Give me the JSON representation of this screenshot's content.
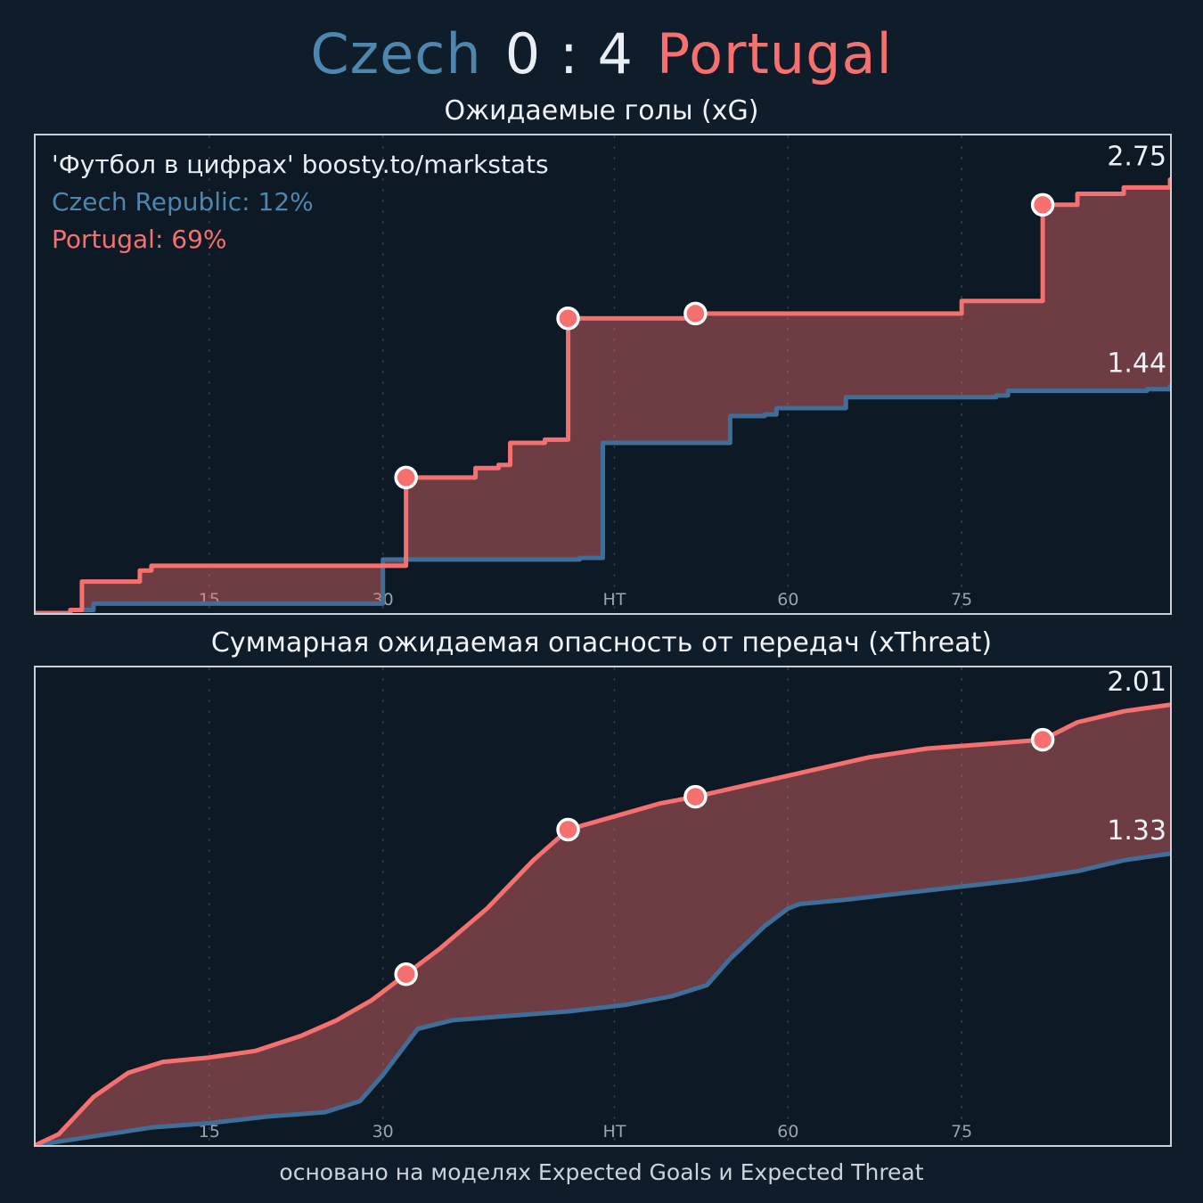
{
  "header": {
    "home": "Czech",
    "score": "0 : 4",
    "away": "Portugal"
  },
  "watermark": {
    "line1": "'Футбол в цифрах' boosty.to/markstats",
    "czech": "Czech Republic: 12%",
    "portugal": "Portugal: 69%"
  },
  "footer": {
    "note": "основано на моделях Expected Goals и Expected Threat"
  },
  "colors": {
    "portugal": "#f5706e",
    "czech": "#3f6f99",
    "fill": "rgba(245,110,110,0.42)",
    "grid": "#8a95a1",
    "tick_label": "#9aa4ae",
    "end_label": "#eef2f6",
    "marker_stroke": "#ffffff",
    "background": "#0f1c29",
    "panel_border": "#c9d0d7"
  },
  "chart_data": [
    {
      "type": "area",
      "title": "Ожидаемые голы (xG)",
      "step": true,
      "x_domain": [
        0,
        98
      ],
      "ylim": [
        0,
        3.03
      ],
      "grid": "vertical-dashed",
      "legend_position": "none",
      "ticks": [
        {
          "label": "15",
          "t": 15
        },
        {
          "label": "30",
          "t": 30
        },
        {
          "label": "HT",
          "t": 50
        },
        {
          "label": "60",
          "t": 65
        },
        {
          "label": "75",
          "t": 80
        }
      ],
      "series": [
        {
          "name": "Portugal",
          "color": "#f5706e",
          "end_label": "2.75",
          "points": [
            [
              0,
              0
            ],
            [
              3,
              0.02
            ],
            [
              4,
              0.2
            ],
            [
              8,
              0.2
            ],
            [
              9,
              0.27
            ],
            [
              10,
              0.3
            ],
            [
              30,
              0.3
            ],
            [
              32,
              0.86
            ],
            [
              37,
              0.86
            ],
            [
              38,
              0.92
            ],
            [
              40,
              0.94
            ],
            [
              41,
              1.08
            ],
            [
              44,
              1.1
            ],
            [
              46,
              1.87
            ],
            [
              56,
              1.87
            ],
            [
              57,
              1.9
            ],
            [
              79,
              1.9
            ],
            [
              80,
              1.98
            ],
            [
              85,
              1.98
            ],
            [
              87,
              2.59
            ],
            [
              89,
              2.59
            ],
            [
              90,
              2.66
            ],
            [
              93,
              2.66
            ],
            [
              94,
              2.7
            ],
            [
              98,
              2.75
            ]
          ]
        },
        {
          "name": "Czech Republic",
          "color": "#3f6f99",
          "end_label": "1.44",
          "points": [
            [
              0,
              0
            ],
            [
              3,
              0.02
            ],
            [
              5,
              0.06
            ],
            [
              29,
              0.06
            ],
            [
              30,
              0.34
            ],
            [
              47,
              0.35
            ],
            [
              49,
              1.08
            ],
            [
              59,
              1.08
            ],
            [
              60,
              1.25
            ],
            [
              63,
              1.26
            ],
            [
              64,
              1.3
            ],
            [
              69,
              1.3
            ],
            [
              70,
              1.37
            ],
            [
              83,
              1.38
            ],
            [
              84,
              1.41
            ],
            [
              96,
              1.42
            ],
            [
              98,
              1.44
            ]
          ]
        }
      ],
      "goal_markers": {
        "series": "Portugal",
        "t": [
          32,
          46,
          57,
          87
        ]
      }
    },
    {
      "type": "area",
      "title": "Суммарная ожидаемая опасность от передач (xThreat)",
      "step": false,
      "x_domain": [
        0,
        98
      ],
      "ylim": [
        0,
        2.18
      ],
      "grid": "vertical-dashed",
      "legend_position": "none",
      "ticks": [
        {
          "label": "15",
          "t": 15
        },
        {
          "label": "30",
          "t": 30
        },
        {
          "label": "HT",
          "t": 50
        },
        {
          "label": "60",
          "t": 65
        },
        {
          "label": "75",
          "t": 80
        }
      ],
      "series": [
        {
          "name": "Portugal",
          "color": "#f5706e",
          "end_label": "2.01",
          "points": [
            [
              0,
              0
            ],
            [
              2,
              0.05
            ],
            [
              5,
              0.22
            ],
            [
              8,
              0.33
            ],
            [
              11,
              0.38
            ],
            [
              15,
              0.4
            ],
            [
              19,
              0.43
            ],
            [
              23,
              0.5
            ],
            [
              26,
              0.57
            ],
            [
              29,
              0.66
            ],
            [
              32,
              0.78
            ],
            [
              35,
              0.9
            ],
            [
              39,
              1.08
            ],
            [
              43,
              1.3
            ],
            [
              46,
              1.44
            ],
            [
              50,
              1.5
            ],
            [
              54,
              1.56
            ],
            [
              57,
              1.59
            ],
            [
              62,
              1.65
            ],
            [
              67,
              1.71
            ],
            [
              72,
              1.77
            ],
            [
              77,
              1.81
            ],
            [
              82,
              1.83
            ],
            [
              87,
              1.85
            ],
            [
              90,
              1.93
            ],
            [
              94,
              1.98
            ],
            [
              98,
              2.01
            ]
          ]
        },
        {
          "name": "Czech Republic",
          "color": "#3f6f99",
          "end_label": "1.33",
          "points": [
            [
              0,
              0
            ],
            [
              5,
              0.04
            ],
            [
              10,
              0.08
            ],
            [
              15,
              0.1
            ],
            [
              20,
              0.13
            ],
            [
              25,
              0.15
            ],
            [
              28,
              0.2
            ],
            [
              30,
              0.32
            ],
            [
              32,
              0.46
            ],
            [
              33,
              0.53
            ],
            [
              36,
              0.57
            ],
            [
              41,
              0.59
            ],
            [
              46,
              0.61
            ],
            [
              51,
              0.64
            ],
            [
              55,
              0.68
            ],
            [
              58,
              0.73
            ],
            [
              60,
              0.85
            ],
            [
              63,
              1.0
            ],
            [
              65,
              1.08
            ],
            [
              66,
              1.1
            ],
            [
              70,
              1.12
            ],
            [
              75,
              1.15
            ],
            [
              80,
              1.18
            ],
            [
              85,
              1.21
            ],
            [
              90,
              1.25
            ],
            [
              94,
              1.3
            ],
            [
              98,
              1.33
            ]
          ]
        }
      ],
      "goal_markers": {
        "series": "Portugal",
        "t": [
          32,
          46,
          57,
          87
        ]
      }
    }
  ]
}
